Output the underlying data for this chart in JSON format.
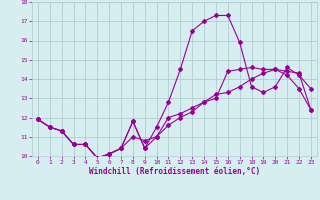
{
  "background_color": "#d6eef0",
  "grid_color": "#b0cdd0",
  "line_color": "#990099",
  "xlabel": "Windchill (Refroidissement éolien,°C)",
  "xlim": [
    -0.5,
    23.5
  ],
  "ylim": [
    10,
    18
  ],
  "xticks": [
    0,
    1,
    2,
    3,
    4,
    5,
    6,
    7,
    8,
    9,
    10,
    11,
    12,
    13,
    14,
    15,
    16,
    17,
    18,
    19,
    20,
    21,
    22,
    23
  ],
  "yticks": [
    10,
    11,
    12,
    13,
    14,
    15,
    16,
    17,
    18
  ],
  "line1_x": [
    0,
    1,
    2,
    3,
    4,
    5,
    6,
    7,
    8,
    9,
    10,
    11,
    12,
    13,
    14,
    15,
    16,
    17,
    18,
    19,
    20,
    21,
    22,
    23
  ],
  "line1_y": [
    11.9,
    11.5,
    11.3,
    10.6,
    10.6,
    9.9,
    10.1,
    10.4,
    11.8,
    10.4,
    11.0,
    12.0,
    12.2,
    12.5,
    12.8,
    13.0,
    14.4,
    14.5,
    14.6,
    14.5,
    14.5,
    14.2,
    13.5,
    12.4
  ],
  "line2_x": [
    0,
    1,
    2,
    3,
    4,
    5,
    6,
    7,
    8,
    9,
    10,
    11,
    12,
    13,
    14,
    15,
    16,
    17,
    18,
    19,
    20,
    21,
    22,
    23
  ],
  "line2_y": [
    11.9,
    11.5,
    11.3,
    10.6,
    10.6,
    9.9,
    10.1,
    10.4,
    11.8,
    10.4,
    11.5,
    12.8,
    14.5,
    16.5,
    17.0,
    17.3,
    17.3,
    15.9,
    13.6,
    13.3,
    13.6,
    14.6,
    14.2,
    13.5
  ],
  "line3_x": [
    0,
    1,
    2,
    3,
    4,
    5,
    6,
    7,
    8,
    9,
    10,
    11,
    12,
    13,
    14,
    15,
    16,
    17,
    18,
    19,
    20,
    21,
    22,
    23
  ],
  "line3_y": [
    11.9,
    11.5,
    11.3,
    10.6,
    10.6,
    9.9,
    10.1,
    10.4,
    11.0,
    10.8,
    11.0,
    11.6,
    12.0,
    12.3,
    12.8,
    13.2,
    13.3,
    13.6,
    14.0,
    14.3,
    14.5,
    14.4,
    14.3,
    12.4
  ],
  "fig_width": 3.2,
  "fig_height": 2.0,
  "dpi": 100,
  "tick_fontsize": 4.5,
  "xlabel_fontsize": 5.5,
  "marker_size": 2.0,
  "line_width": 0.8
}
